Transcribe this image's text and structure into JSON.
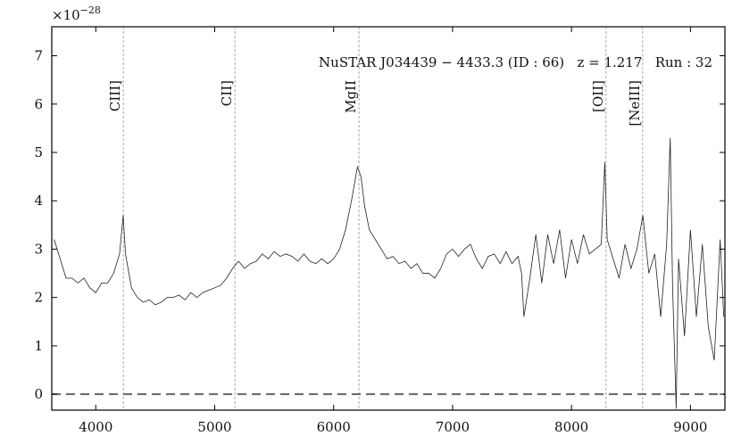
{
  "chart_data": {
    "type": "line",
    "title": "NuSTAR J034439 − 4433.3 (ID : 66)   z = 1.217   Run : 32",
    "offset_label": "×10",
    "offset_exponent": "−28",
    "x": [
      3650,
      3700,
      3750,
      3800,
      3850,
      3900,
      3950,
      4000,
      4050,
      4100,
      4150,
      4200,
      4230,
      4250,
      4300,
      4350,
      4400,
      4450,
      4500,
      4550,
      4600,
      4650,
      4700,
      4750,
      4800,
      4850,
      4900,
      4950,
      5000,
      5050,
      5100,
      5150,
      5200,
      5250,
      5300,
      5350,
      5400,
      5450,
      5500,
      5550,
      5600,
      5650,
      5700,
      5750,
      5800,
      5850,
      5900,
      5950,
      6000,
      6050,
      6100,
      6150,
      6200,
      6230,
      6260,
      6300,
      6350,
      6400,
      6450,
      6500,
      6550,
      6600,
      6650,
      6700,
      6750,
      6800,
      6850,
      6900,
      6950,
      7000,
      7050,
      7100,
      7150,
      7200,
      7250,
      7300,
      7350,
      7400,
      7450,
      7500,
      7550,
      7580,
      7600,
      7650,
      7700,
      7750,
      7800,
      7850,
      7900,
      7950,
      8000,
      8050,
      8100,
      8150,
      8200,
      8250,
      8280,
      8300,
      8350,
      8400,
      8450,
      8500,
      8550,
      8600,
      8650,
      8700,
      8750,
      8800,
      8830,
      8850,
      8880,
      8900,
      8950,
      9000,
      9050,
      9100,
      9150,
      9200,
      9250,
      9280
    ],
    "values": [
      3.2,
      2.8,
      2.4,
      2.4,
      2.3,
      2.4,
      2.2,
      2.1,
      2.3,
      2.3,
      2.5,
      2.9,
      3.7,
      2.9,
      2.2,
      2.0,
      1.9,
      1.95,
      1.85,
      1.9,
      2.0,
      2.0,
      2.05,
      1.95,
      2.1,
      2.0,
      2.1,
      2.15,
      2.2,
      2.25,
      2.4,
      2.6,
      2.75,
      2.6,
      2.7,
      2.75,
      2.9,
      2.8,
      2.95,
      2.85,
      2.9,
      2.85,
      2.75,
      2.9,
      2.75,
      2.7,
      2.8,
      2.7,
      2.8,
      3.0,
      3.4,
      4.0,
      4.7,
      4.5,
      3.9,
      3.4,
      3.2,
      3.0,
      2.8,
      2.85,
      2.7,
      2.75,
      2.6,
      2.7,
      2.5,
      2.5,
      2.4,
      2.6,
      2.9,
      3.0,
      2.85,
      3.0,
      3.1,
      2.8,
      2.6,
      2.85,
      2.9,
      2.7,
      2.95,
      2.7,
      2.85,
      2.5,
      1.6,
      2.4,
      3.3,
      2.3,
      3.3,
      2.7,
      3.4,
      2.4,
      3.2,
      2.7,
      3.3,
      2.9,
      3.0,
      3.1,
      4.8,
      3.2,
      2.8,
      2.4,
      3.1,
      2.6,
      3.0,
      3.7,
      2.5,
      2.9,
      1.6,
      3.1,
      5.3,
      2.2,
      -0.3,
      2.8,
      1.2,
      3.4,
      1.6,
      3.1,
      1.4,
      0.7,
      3.2,
      1.6
    ],
    "color": "#222222",
    "emission_lines": [
      {
        "label": "CIII]",
        "x": 4232
      },
      {
        "label": "CII]",
        "x": 5170
      },
      {
        "label": "MgII",
        "x": 6213
      },
      {
        "label": "[OII]",
        "x": 8290
      },
      {
        "label": "[NeIII]",
        "x": 8598
      }
    ],
    "hlines": [
      0
    ],
    "xlim": [
      3630,
      9290
    ],
    "ylim": [
      -0.33,
      7.6
    ],
    "xticks": [
      4000,
      5000,
      6000,
      7000,
      8000,
      9000
    ],
    "yticks": [
      0,
      1,
      2,
      3,
      4,
      5,
      6,
      7
    ]
  }
}
